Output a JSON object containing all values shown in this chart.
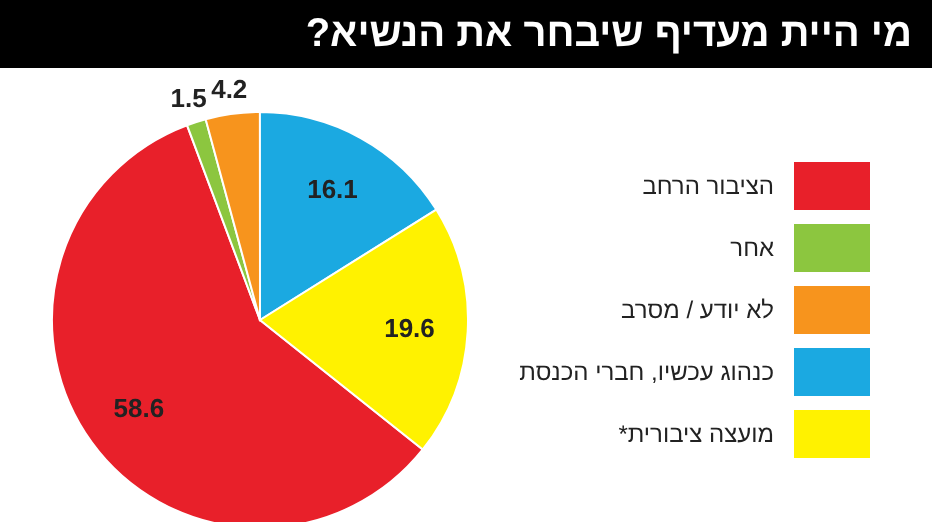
{
  "chart_data": {
    "type": "pie",
    "title": "מי היית מעדיף שיבחר את הנשיא?",
    "categories": [
      "הציבור הרחב",
      "אחר",
      "לא יודע / מסרב",
      "כנהוג עכשיו, חברי הכנסת",
      "מועצה ציבורית*"
    ],
    "values": [
      58.6,
      1.5,
      4.2,
      16.1,
      19.6
    ],
    "colors": [
      "#e8202a",
      "#8cc63f",
      "#f7941d",
      "#1ba9e1",
      "#fff200"
    ],
    "data_labels": true,
    "legend": "right"
  }
}
